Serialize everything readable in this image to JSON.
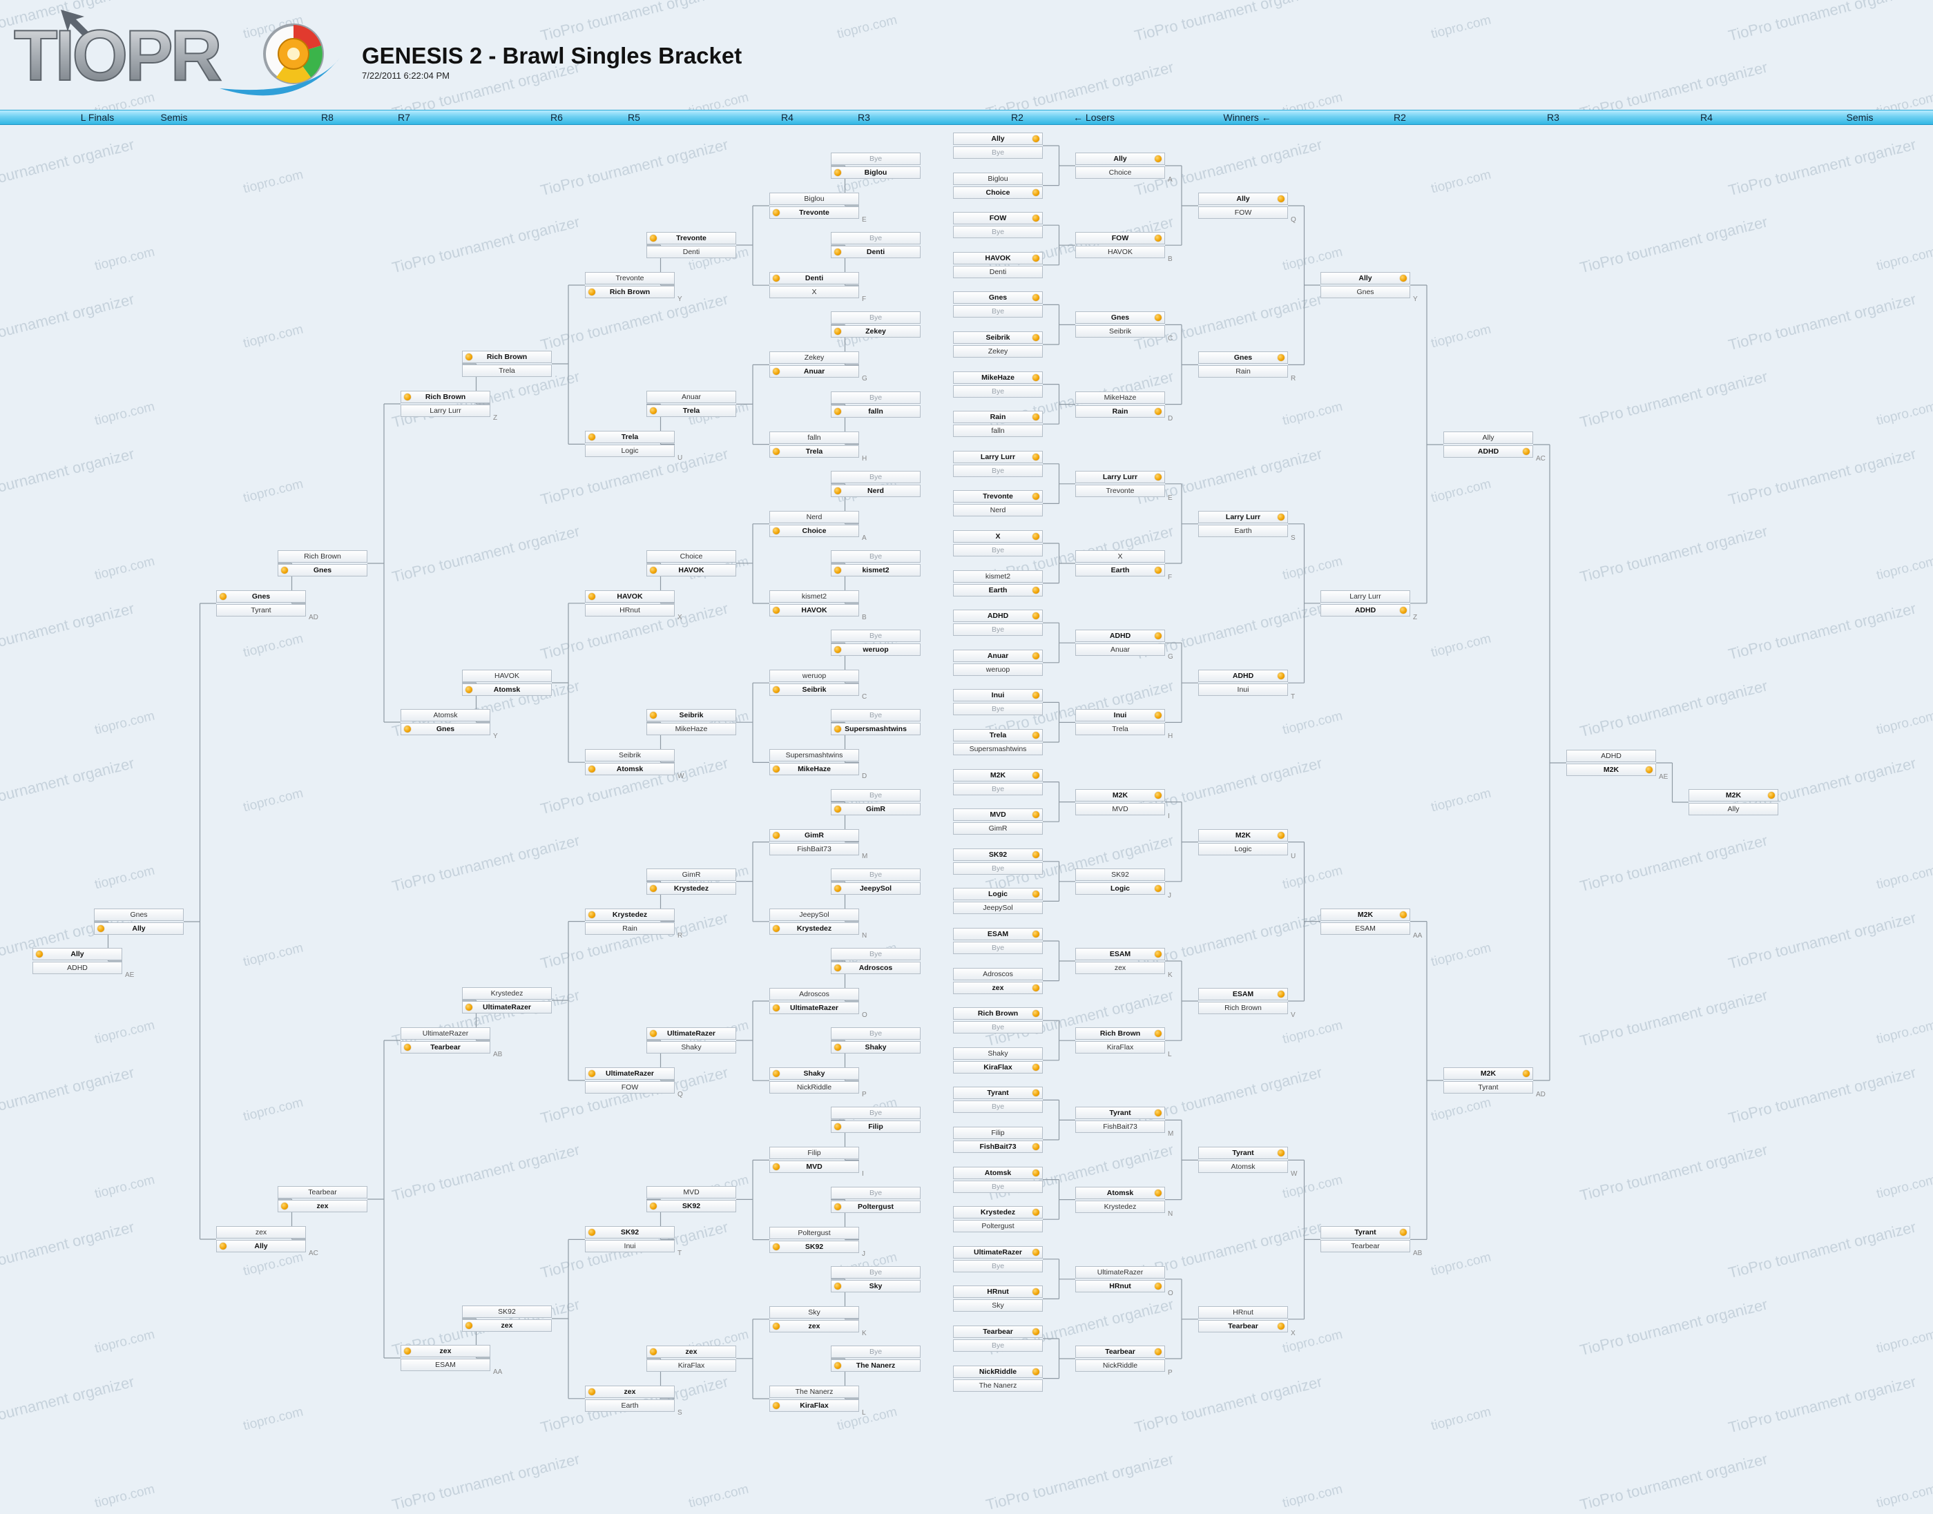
{
  "header": {
    "logo_text": "TIOPRO",
    "title": "GENESIS 2 - Brawl Singles Bracket",
    "date": "7/22/2011 6:22:04 PM"
  },
  "watermarks": [
    "TioPro tournament organizer",
    "tiopro.com"
  ],
  "rounds": [
    {
      "label": "L Finals"
    },
    {
      "label": "Semis"
    },
    {
      "label": "R8"
    },
    {
      "label": "R7"
    },
    {
      "label": "R6"
    },
    {
      "label": "R5"
    },
    {
      "label": "R4"
    },
    {
      "label": "R3"
    },
    {
      "label": "R2"
    },
    {
      "label": "← Losers"
    },
    {
      "label": "Winners ←"
    },
    {
      "label": "R2"
    },
    {
      "label": "R3"
    },
    {
      "label": "R4"
    },
    {
      "label": "Semis"
    }
  ],
  "colors": {
    "accent": "#f0a100",
    "bar": "#4cc4ee",
    "background": "#e9f0f6"
  },
  "matches": [
    {
      "p1": "Ally",
      "p2": "Bye",
      "win": 1
    },
    {
      "p1": "Biglou",
      "p2": "Choice",
      "win": 2
    },
    {
      "p1": "FOW",
      "p2": "Bye",
      "win": 1
    },
    {
      "p1": "HAVOK",
      "p2": "Denti",
      "win": 1
    },
    {
      "p1": "Gnes",
      "p2": "Bye",
      "win": 1
    },
    {
      "p1": "Seibrik",
      "p2": "Zekey",
      "win": 1
    },
    {
      "p1": "MikeHaze",
      "p2": "Bye",
      "win": 1
    },
    {
      "p1": "Rain",
      "p2": "falln",
      "win": 1
    },
    {
      "p1": "Larry Lurr",
      "p2": "Bye",
      "win": 1
    },
    {
      "p1": "Trevonte",
      "p2": "Nerd",
      "win": 1
    },
    {
      "p1": "X",
      "p2": "Bye",
      "win": 1
    },
    {
      "p1": "kismet2",
      "p2": "Earth",
      "win": 2
    },
    {
      "p1": "ADHD",
      "p2": "Bye",
      "win": 1
    },
    {
      "p1": "Anuar",
      "p2": "weruop",
      "win": 1
    },
    {
      "p1": "Inui",
      "p2": "Bye",
      "win": 1
    },
    {
      "p1": "Trela",
      "p2": "Supersmashtwins",
      "win": 1
    },
    {
      "p1": "M2K",
      "p2": "Bye",
      "win": 1
    },
    {
      "p1": "MVD",
      "p2": "GimR",
      "win": 1
    },
    {
      "p1": "SK92",
      "p2": "Bye",
      "win": 1
    },
    {
      "p1": "Logic",
      "p2": "JeepySol",
      "win": 1
    },
    {
      "p1": "ESAM",
      "p2": "Bye",
      "win": 1
    },
    {
      "p1": "Adroscos",
      "p2": "zex",
      "win": 2
    },
    {
      "p1": "Rich Brown",
      "p2": "Bye",
      "win": 1
    },
    {
      "p1": "Shaky",
      "p2": "KiraFlax",
      "win": 2
    },
    {
      "p1": "Tyrant",
      "p2": "Bye",
      "win": 1
    },
    {
      "p1": "Filip",
      "p2": "FishBait73",
      "win": 2
    },
    {
      "p1": "Atomsk",
      "p2": "Bye",
      "win": 1
    },
    {
      "p1": "Krystedez",
      "p2": "Poltergust",
      "win": 1
    },
    {
      "p1": "UltimateRazer",
      "p2": "Bye",
      "win": 1
    },
    {
      "p1": "HRnut",
      "p2": "Sky",
      "win": 1
    },
    {
      "p1": "Tearbear",
      "p2": "Bye",
      "win": 1
    },
    {
      "p1": "NickRiddle",
      "p2": "The Nanerz",
      "win": 1
    },
    {
      "p1": "Ally",
      "p2": "Choice",
      "win": 1,
      "id": "A"
    },
    {
      "p1": "FOW",
      "p2": "HAVOK",
      "win": 1,
      "id": "B"
    },
    {
      "p1": "Gnes",
      "p2": "Seibrik",
      "win": 1,
      "id": "C"
    },
    {
      "p1": "MikeHaze",
      "p2": "Rain",
      "win": 2,
      "id": "D"
    },
    {
      "p1": "Larry Lurr",
      "p2": "Trevonte",
      "win": 1,
      "id": "E"
    },
    {
      "p1": "X",
      "p2": "Earth",
      "win": 2,
      "id": "F"
    },
    {
      "p1": "ADHD",
      "p2": "Anuar",
      "win": 1,
      "id": "G"
    },
    {
      "p1": "Inui",
      "p2": "Trela",
      "win": 1,
      "id": "H"
    },
    {
      "p1": "M2K",
      "p2": "MVD",
      "win": 1,
      "id": "I"
    },
    {
      "p1": "SK92",
      "p2": "Logic",
      "win": 2,
      "id": "J"
    },
    {
      "p1": "ESAM",
      "p2": "zex",
      "win": 1,
      "id": "K"
    },
    {
      "p1": "Rich Brown",
      "p2": "KiraFlax",
      "win": 1,
      "id": "L"
    },
    {
      "p1": "Tyrant",
      "p2": "FishBait73",
      "win": 1,
      "id": "M"
    },
    {
      "p1": "Atomsk",
      "p2": "Krystedez",
      "win": 1,
      "id": "N"
    },
    {
      "p1": "UltimateRazer",
      "p2": "HRnut",
      "win": 2,
      "id": "O"
    },
    {
      "p1": "Tearbear",
      "p2": "NickRiddle",
      "win": 1,
      "id": "P"
    },
    {
      "p1": "Ally",
      "p2": "FOW",
      "win": 1,
      "id": "Q"
    },
    {
      "p1": "Gnes",
      "p2": "Rain",
      "win": 1,
      "id": "R"
    },
    {
      "p1": "Larry Lurr",
      "p2": "Earth",
      "win": 1,
      "id": "S"
    },
    {
      "p1": "ADHD",
      "p2": "Inui",
      "win": 1,
      "id": "T"
    },
    {
      "p1": "M2K",
      "p2": "Logic",
      "win": 1,
      "id": "U"
    },
    {
      "p1": "ESAM",
      "p2": "Rich Brown",
      "win": 1,
      "id": "V"
    },
    {
      "p1": "Tyrant",
      "p2": "Atomsk",
      "win": 1,
      "id": "W"
    },
    {
      "p1": "HRnut",
      "p2": "Tearbear",
      "win": 2,
      "id": "X"
    },
    {
      "p1": "Ally",
      "p2": "Gnes",
      "win": 1,
      "id": "Y"
    },
    {
      "p1": "Larry Lurr",
      "p2": "ADHD",
      "win": 2,
      "id": "Z"
    },
    {
      "p1": "M2K",
      "p2": "ESAM",
      "win": 1,
      "id": "AA"
    },
    {
      "p1": "Tyrant",
      "p2": "Tearbear",
      "win": 1,
      "id": "AB"
    },
    {
      "p1": "Ally",
      "p2": "ADHD",
      "win": 2,
      "id": "AC"
    },
    {
      "p1": "M2K",
      "p2": "Tyrant",
      "win": 1,
      "id": "AD"
    },
    {
      "p1": "ADHD",
      "p2": "M2K",
      "win": 2,
      "id": "AE"
    },
    {
      "p1": "M2K",
      "p2": "Ally",
      "win": 1
    },
    {
      "p1": "Bye",
      "p2": "Biglou",
      "win": 2
    },
    {
      "p1": "Bye",
      "p2": "Denti",
      "win": 2
    },
    {
      "p1": "Bye",
      "p2": "Zekey",
      "win": 2
    },
    {
      "p1": "Bye",
      "p2": "falln",
      "win": 2
    },
    {
      "p1": "Bye",
      "p2": "Nerd",
      "win": 2
    },
    {
      "p1": "Bye",
      "p2": "kismet2",
      "win": 2
    },
    {
      "p1": "Bye",
      "p2": "weruop",
      "win": 2
    },
    {
      "p1": "Bye",
      "p2": "Supersmashtwins",
      "win": 2
    },
    {
      "p1": "Bye",
      "p2": "GimR",
      "win": 2
    },
    {
      "p1": "Bye",
      "p2": "JeepySol",
      "win": 2
    },
    {
      "p1": "Bye",
      "p2": "Adroscos",
      "win": 2
    },
    {
      "p1": "Bye",
      "p2": "Shaky",
      "win": 2
    },
    {
      "p1": "Bye",
      "p2": "Filip",
      "win": 2
    },
    {
      "p1": "Bye",
      "p2": "Poltergust",
      "win": 2
    },
    {
      "p1": "Bye",
      "p2": "Sky",
      "win": 2
    },
    {
      "p1": "Bye",
      "p2": "The Nanerz",
      "win": 2
    },
    {
      "p1": "Biglou",
      "p2": "Trevonte",
      "win": 2,
      "id": "E"
    },
    {
      "p1": "Denti",
      "p2": "X",
      "win": 1,
      "id": "F"
    },
    {
      "p1": "Zekey",
      "p2": "Anuar",
      "win": 2,
      "id": "G"
    },
    {
      "p1": "falln",
      "p2": "Trela",
      "win": 2,
      "id": "H"
    },
    {
      "p1": "Nerd",
      "p2": "Choice",
      "win": 2,
      "id": "A"
    },
    {
      "p1": "kismet2",
      "p2": "HAVOK",
      "win": 2,
      "id": "B"
    },
    {
      "p1": "weruop",
      "p2": "Seibrik",
      "win": 2,
      "id": "C"
    },
    {
      "p1": "Supersmashtwins",
      "p2": "MikeHaze",
      "win": 2,
      "id": "D"
    },
    {
      "p1": "GimR",
      "p2": "FishBait73",
      "win": 1,
      "id": "M"
    },
    {
      "p1": "JeepySol",
      "p2": "Krystedez",
      "win": 2,
      "id": "N"
    },
    {
      "p1": "Adroscos",
      "p2": "UltimateRazer",
      "win": 2,
      "id": "O"
    },
    {
      "p1": "Shaky",
      "p2": "NickRiddle",
      "win": 1,
      "id": "P"
    },
    {
      "p1": "Filip",
      "p2": "MVD",
      "win": 2,
      "id": "I"
    },
    {
      "p1": "Poltergust",
      "p2": "SK92",
      "win": 2,
      "id": "J"
    },
    {
      "p1": "Sky",
      "p2": "zex",
      "win": 2,
      "id": "K"
    },
    {
      "p1": "The Nanerz",
      "p2": "KiraFlax",
      "win": 2,
      "id": "L"
    },
    {
      "p1": "Trevonte",
      "p2": "Denti",
      "win": 1
    },
    {
      "p1": "Anuar",
      "p2": "Trela",
      "win": 2
    },
    {
      "p1": "Choice",
      "p2": "HAVOK",
      "win": 2
    },
    {
      "p1": "Seibrik",
      "p2": "MikeHaze",
      "win": 1
    },
    {
      "p1": "GimR",
      "p2": "Krystedez",
      "win": 2
    },
    {
      "p1": "UltimateRazer",
      "p2": "Shaky",
      "win": 1
    },
    {
      "p1": "MVD",
      "p2": "SK92",
      "win": 2
    },
    {
      "p1": "zex",
      "p2": "KiraFlax",
      "win": 1
    },
    {
      "p1": "Trevonte",
      "p2": "Rich Brown",
      "win": 2,
      "id": "Y"
    },
    {
      "p1": "Trela",
      "p2": "Logic",
      "win": 1,
      "id": "U"
    },
    {
      "p1": "HAVOK",
      "p2": "HRnut",
      "win": 1,
      "id": "X"
    },
    {
      "p1": "Seibrik",
      "p2": "Atomsk",
      "win": 2,
      "id": "W"
    },
    {
      "p1": "Krystedez",
      "p2": "Rain",
      "win": 1,
      "id": "R"
    },
    {
      "p1": "UltimateRazer",
      "p2": "FOW",
      "win": 1,
      "id": "Q"
    },
    {
      "p1": "SK92",
      "p2": "Inui",
      "win": 1,
      "id": "T"
    },
    {
      "p1": "zex",
      "p2": "Earth",
      "win": 1,
      "id": "S"
    },
    {
      "p1": "Rich Brown",
      "p2": "Trela",
      "win": 1
    },
    {
      "p1": "HAVOK",
      "p2": "Atomsk",
      "win": 2
    },
    {
      "p1": "Krystedez",
      "p2": "UltimateRazer",
      "win": 2
    },
    {
      "p1": "SK92",
      "p2": "zex",
      "win": 2
    },
    {
      "p1": "Rich Brown",
      "p2": "Larry Lurr",
      "win": 1,
      "id": "Z"
    },
    {
      "p1": "Atomsk",
      "p2": "Gnes",
      "win": 2,
      "id": "Y"
    },
    {
      "p1": "UltimateRazer",
      "p2": "Tearbear",
      "win": 2,
      "id": "AB"
    },
    {
      "p1": "zex",
      "p2": "ESAM",
      "win": 1,
      "id": "AA"
    },
    {
      "p1": "Rich Brown",
      "p2": "Gnes",
      "win": 2
    },
    {
      "p1": "Tearbear",
      "p2": "zex",
      "win": 2
    },
    {
      "p1": "Gnes",
      "p2": "Tyrant",
      "win": 1,
      "id": "AD"
    },
    {
      "p1": "zex",
      "p2": "Ally",
      "win": 2,
      "id": "AC"
    },
    {
      "p1": "Gnes",
      "p2": "Ally",
      "win": 2
    },
    {
      "p1": "Ally",
      "p2": "ADHD",
      "win": 1,
      "id": "AE"
    }
  ]
}
